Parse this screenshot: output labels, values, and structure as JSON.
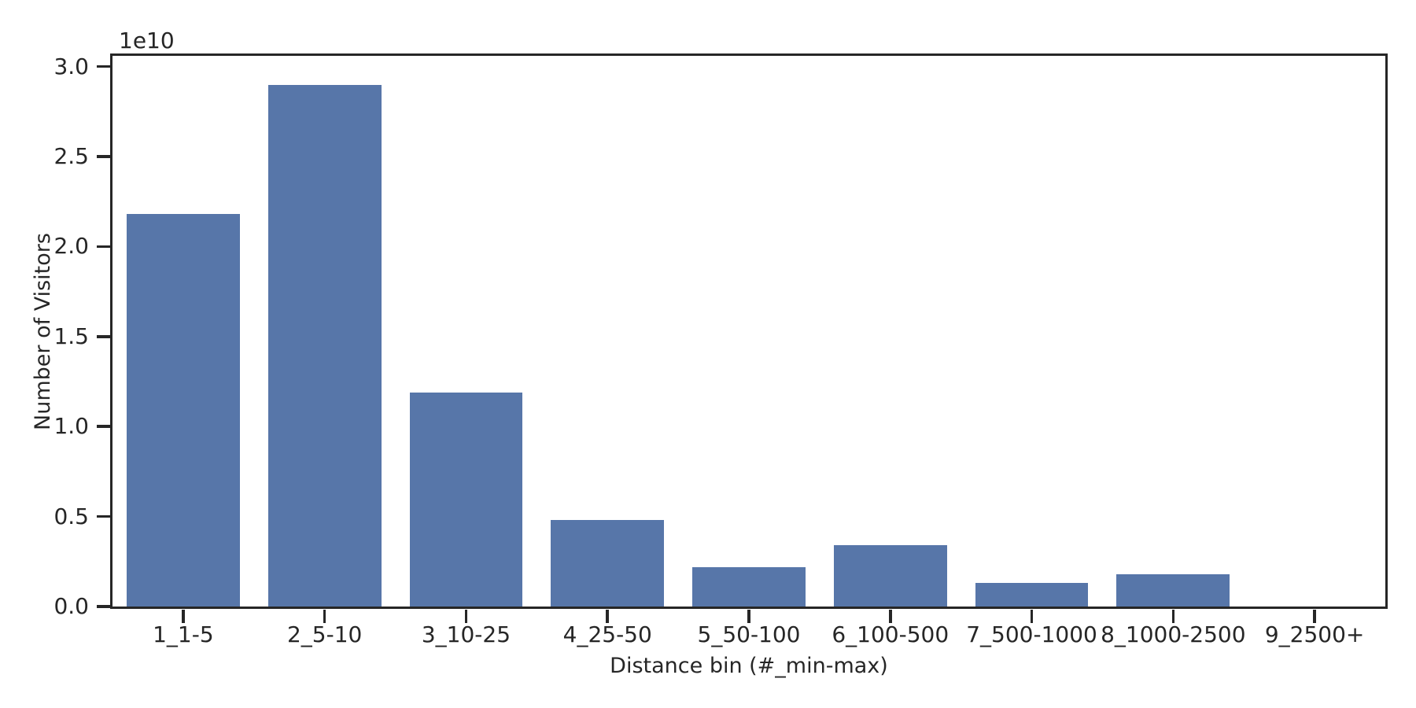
{
  "chart_data": {
    "type": "bar",
    "title": "",
    "xlabel": "Distance bin (#_min-max)",
    "ylabel": "Number of Visitors",
    "y_offset_text": "1e10",
    "categories": [
      "1_1-5",
      "2_5-10",
      "3_10-25",
      "4_25-50",
      "5_50-100",
      "6_100-500",
      "7_500-1000",
      "8_1000-2500",
      "9_2500+"
    ],
    "values": [
      21800000000,
      29000000000,
      11900000000,
      4800000000,
      2200000000,
      3400000000,
      1300000000,
      1800000000,
      0
    ],
    "yticks": [
      {
        "value": 0,
        "label": "0.0"
      },
      {
        "value": 5000000000,
        "label": "0.5"
      },
      {
        "value": 10000000000,
        "label": "1.0"
      },
      {
        "value": 15000000000,
        "label": "1.5"
      },
      {
        "value": 20000000000,
        "label": "2.0"
      },
      {
        "value": 25000000000,
        "label": "2.5"
      },
      {
        "value": 30000000000,
        "label": "3.0"
      }
    ],
    "ylim": [
      0,
      30600000000
    ],
    "bar_rel_width": 0.8,
    "grid": false,
    "legend": null,
    "colors": {
      "bar": "#5776A9",
      "axis": "#262626",
      "background": "#ffffff"
    }
  }
}
